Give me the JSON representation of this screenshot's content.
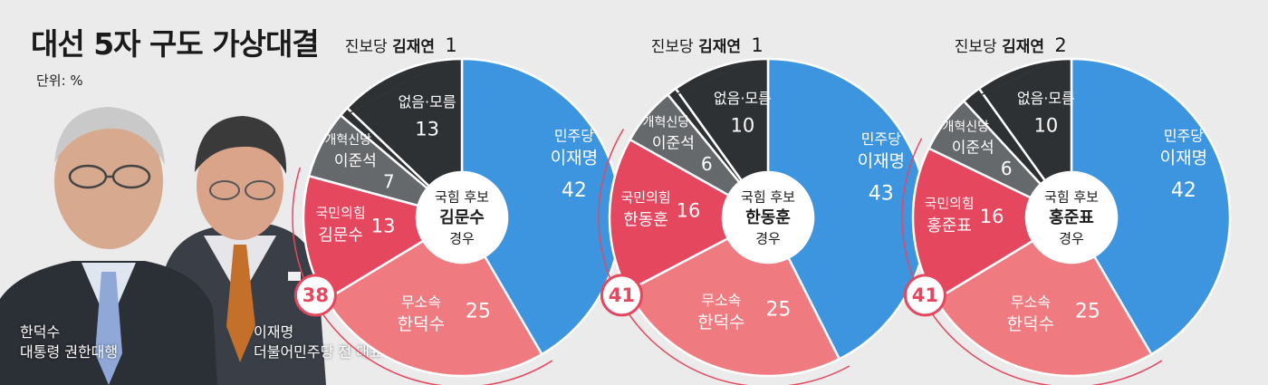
{
  "title": "대선 5자 구도 가상대결",
  "unit": "단위: %",
  "people": [
    {
      "name": "한덕수",
      "title": "대통령 권한대행"
    },
    {
      "name": "이재명",
      "title": "더불어민주당 전 대표"
    }
  ],
  "colors": {
    "democratic": "#3d95e0",
    "independent": "#ef7a7f",
    "ppp": "#e5475f",
    "reform": "#66696c",
    "none": "#2e3134",
    "progressive": "#2e3134",
    "conservative_sum": "#e5475f",
    "background": "#ebebeb"
  },
  "chart_data": [
    {
      "type": "pie",
      "center_label": {
        "line1": "국힘 후보",
        "line2": "김문수",
        "line3": "경우"
      },
      "conservative_sum": "38",
      "slices": [
        {
          "party": "민주당",
          "name": "이재명",
          "value": 42
        },
        {
          "party": "무소속",
          "name": "한덕수",
          "value": 25
        },
        {
          "party": "국민의힘",
          "name": "김문수",
          "value": 13
        },
        {
          "party": "개혁신당",
          "name": "이준석",
          "value": 7
        },
        {
          "party": "진보당",
          "name": "김재연",
          "value": 1
        },
        {
          "party": "",
          "name": "없음·모름",
          "value": 13
        }
      ]
    },
    {
      "type": "pie",
      "center_label": {
        "line1": "국힘 후보",
        "line2": "한동훈",
        "line3": "경우"
      },
      "conservative_sum": "41",
      "slices": [
        {
          "party": "민주당",
          "name": "이재명",
          "value": 43
        },
        {
          "party": "무소속",
          "name": "한덕수",
          "value": 25
        },
        {
          "party": "국민의힘",
          "name": "한동훈",
          "value": 16
        },
        {
          "party": "개혁신당",
          "name": "이준석",
          "value": 6
        },
        {
          "party": "진보당",
          "name": "김재연",
          "value": 1
        },
        {
          "party": "",
          "name": "없음·모름",
          "value": 10
        }
      ]
    },
    {
      "type": "pie",
      "center_label": {
        "line1": "국힘 후보",
        "line2": "홍준표",
        "line3": "경우"
      },
      "conservative_sum": "41",
      "slices": [
        {
          "party": "민주당",
          "name": "이재명",
          "value": 42
        },
        {
          "party": "무소속",
          "name": "한덕수",
          "value": 25
        },
        {
          "party": "국민의힘",
          "name": "홍준표",
          "value": 16
        },
        {
          "party": "개혁신당",
          "name": "이준석",
          "value": 6
        },
        {
          "party": "진보당",
          "name": "김재연",
          "value": 2
        },
        {
          "party": "",
          "name": "없음·모름",
          "value": 10
        }
      ]
    }
  ]
}
